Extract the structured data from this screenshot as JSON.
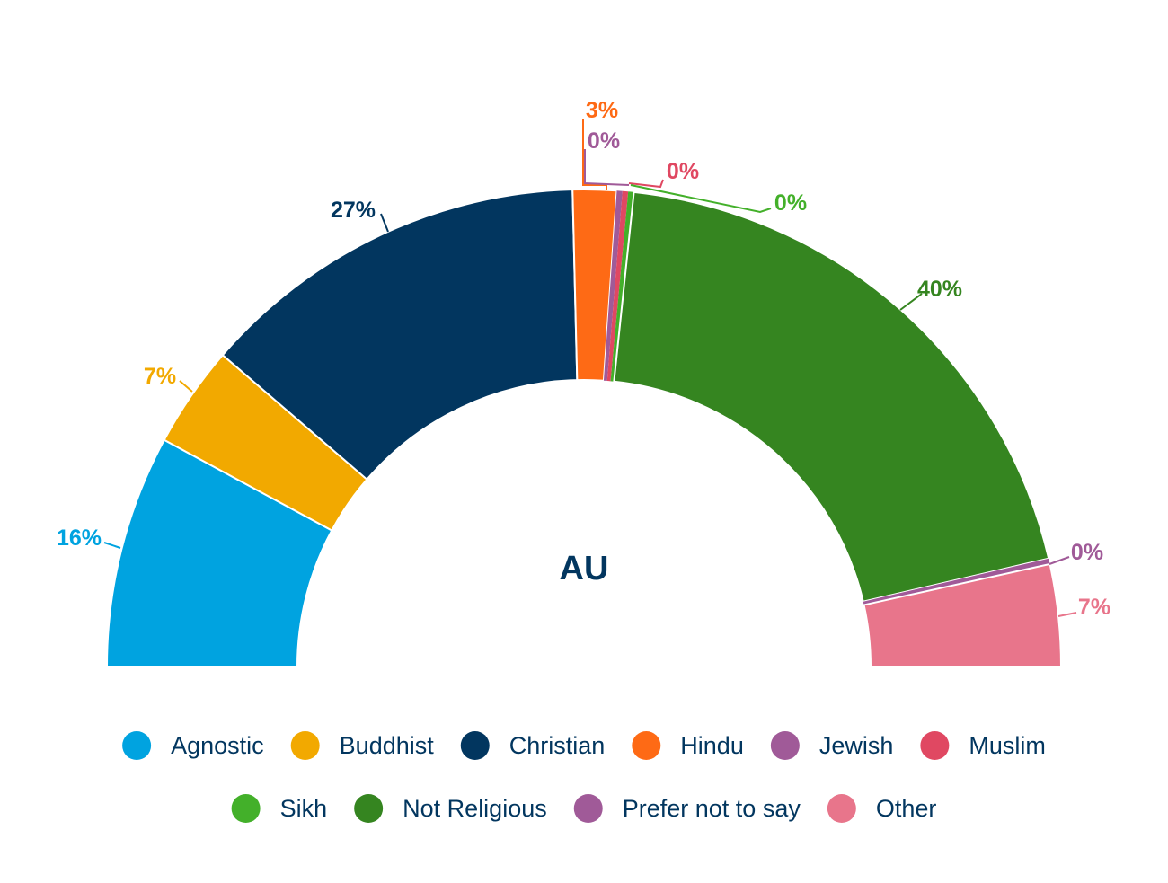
{
  "chart_data": {
    "type": "pie",
    "subtype": "semi-donut",
    "center_label": "AU",
    "slices": [
      {
        "name": "Agnostic",
        "value": 16,
        "label": "16%",
        "color": "#00a3e0"
      },
      {
        "name": "Buddhist",
        "value": 7,
        "label": "7%",
        "color": "#f2a900"
      },
      {
        "name": "Christian",
        "value": 27,
        "label": "27%",
        "color": "#02365f"
      },
      {
        "name": "Hindu",
        "value": 3,
        "label": "3%",
        "color": "#fe6a15"
      },
      {
        "name": "Jewish",
        "value": 0,
        "label": "0%",
        "color": "#a05a98"
      },
      {
        "name": "Muslim",
        "value": 0,
        "label": "0%",
        "color": "#e04862"
      },
      {
        "name": "Sikh",
        "value": 0,
        "label": "0%",
        "color": "#43b02a"
      },
      {
        "name": "Not Religious",
        "value": 40,
        "label": "40%",
        "color": "#358520"
      },
      {
        "name": "Prefer not to say",
        "value": 0,
        "label": "0%",
        "color": "#a05a98"
      },
      {
        "name": "Other",
        "value": 7,
        "label": "7%",
        "color": "#e8758b"
      }
    ],
    "legend_position": "bottom",
    "legend_rows": [
      [
        "Agnostic",
        "Buddhist",
        "Christian",
        "Hindu",
        "Jewish",
        "Muslim"
      ],
      [
        "Sikh",
        "Not Religious",
        "Prefer not to say",
        "Other"
      ]
    ]
  }
}
